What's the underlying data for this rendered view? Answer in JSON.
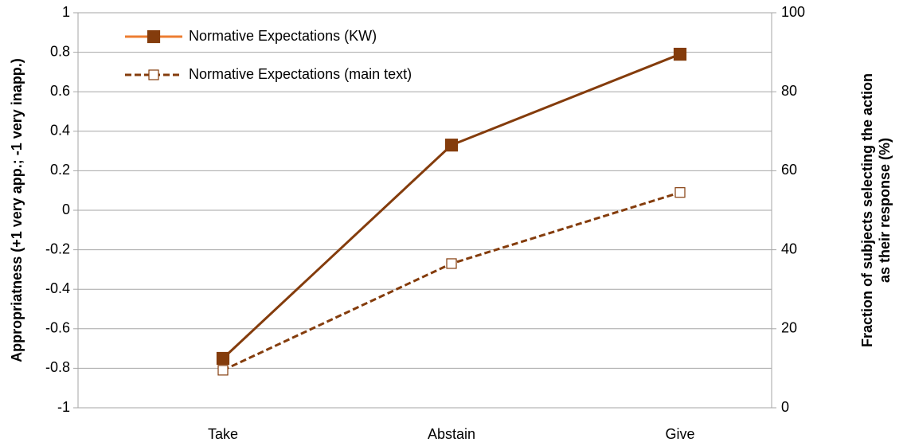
{
  "chart_data": {
    "type": "line",
    "categories": [
      "Take",
      "Abstain",
      "Give"
    ],
    "series": [
      {
        "name": "Normative Expectations (KW)",
        "color": "#843c0c",
        "dashed": false,
        "marker_fill": "#843c0c",
        "values": [
          -0.75,
          0.33,
          0.79
        ]
      },
      {
        "name": "Normative Expectations (main text)",
        "color": "#843c0c",
        "dashed": true,
        "marker_fill": "#ffffff",
        "values": [
          -0.81,
          -0.27,
          0.09
        ]
      }
    ],
    "ylim": [
      -1,
      1
    ],
    "yticks": [
      -1,
      -0.8,
      -0.6,
      -0.4,
      -0.2,
      0,
      0.2,
      0.4,
      0.6,
      0.8,
      1
    ],
    "y2lim": [
      0,
      100
    ],
    "y2ticks": [
      0,
      20,
      40,
      60,
      80,
      100
    ],
    "ylabel": "Appropriatness (+1 very app.; -1 very inapp.)",
    "y2label": [
      "Fraction of subjects  selecting the action",
      "as their response (%)"
    ],
    "grid": true,
    "legend": "top-left"
  }
}
